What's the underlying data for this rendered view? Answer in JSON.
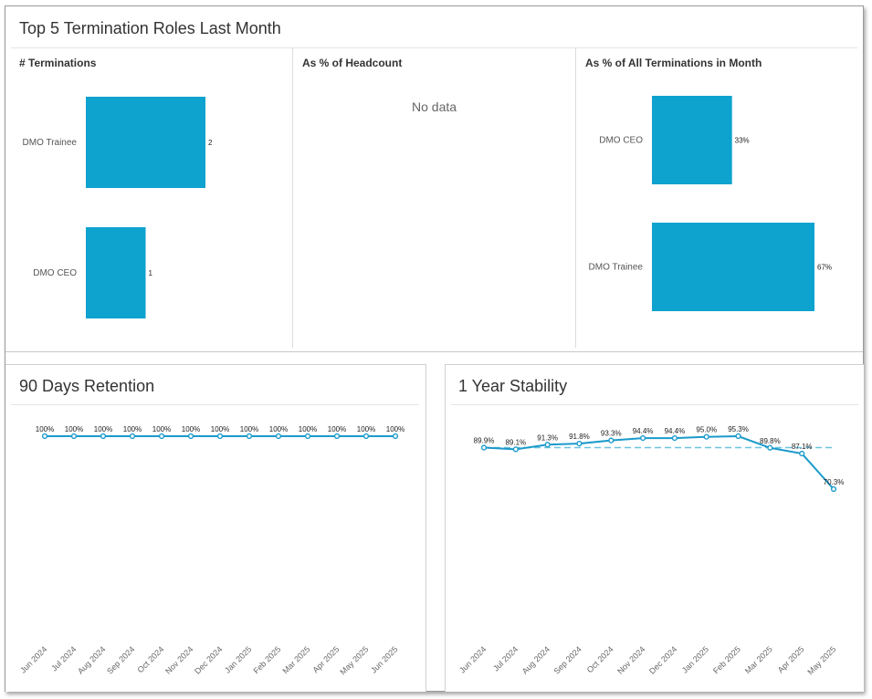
{
  "top_panel": {
    "title": "Top 5 Termination Roles Last Month",
    "col1_title": "# Terminations",
    "col2_title": "As % of Headcount",
    "col2_nodata": "No data",
    "col3_title": "As % of All Terminations in Month"
  },
  "retention_panel": {
    "title": "90 Days Retention"
  },
  "stability_panel": {
    "title": "1 Year Stability"
  },
  "colors": {
    "bar": "#0ea2cf",
    "line": "#1b9acb",
    "dashed": "#6cc4dc"
  },
  "chart_data": [
    {
      "type": "bar",
      "orientation": "horizontal",
      "title": "# Terminations",
      "categories": [
        "DMO Trainee",
        "DMO CEO"
      ],
      "values": [
        2,
        1
      ],
      "value_labels": [
        "2",
        "1"
      ]
    },
    {
      "type": "bar",
      "orientation": "horizontal",
      "title": "As % of Headcount",
      "categories": [],
      "values": []
    },
    {
      "type": "bar",
      "orientation": "horizontal",
      "title": "As % of All Terminations in Month",
      "categories": [
        "DMO CEO",
        "DMO Trainee"
      ],
      "values": [
        33,
        67
      ],
      "value_labels": [
        "33%",
        "67%"
      ]
    },
    {
      "type": "line",
      "title": "90 Days Retention",
      "x": [
        "Jun 2024",
        "Jul 2024",
        "Aug 2024",
        "Sep 2024",
        "Oct 2024",
        "Nov 2024",
        "Dec 2024",
        "Jan 2025",
        "Feb 2025",
        "Mar 2025",
        "Apr 2025",
        "May 2025",
        "Jun 2025"
      ],
      "values": [
        100,
        100,
        100,
        100,
        100,
        100,
        100,
        100,
        100,
        100,
        100,
        100,
        100
      ],
      "value_labels": [
        "100%",
        "100%",
        "100%",
        "100%",
        "100%",
        "100%",
        "100%",
        "100%",
        "100%",
        "100%",
        "100%",
        "100%",
        "100%"
      ]
    },
    {
      "type": "line",
      "title": "1 Year Stability",
      "x": [
        "Jun 2024",
        "Jul 2024",
        "Aug 2024",
        "Sep 2024",
        "Oct 2024",
        "Nov 2024",
        "Dec 2024",
        "Jan 2025",
        "Feb 2025",
        "Mar 2025",
        "Apr 2025",
        "May 2025"
      ],
      "values": [
        89.9,
        89.1,
        91.3,
        91.8,
        93.3,
        94.4,
        94.4,
        95.0,
        95.3,
        89.8,
        87.1,
        70.3
      ],
      "value_labels": [
        "89.9%",
        "89.1%",
        "91.3%",
        "91.8%",
        "93.3%",
        "94.4%",
        "94.4%",
        "95.0%",
        "95.3%",
        "89.8%",
        "87.1%",
        "70.3%"
      ],
      "reference_line": {
        "value": 89.9,
        "style": "dashed"
      }
    }
  ]
}
